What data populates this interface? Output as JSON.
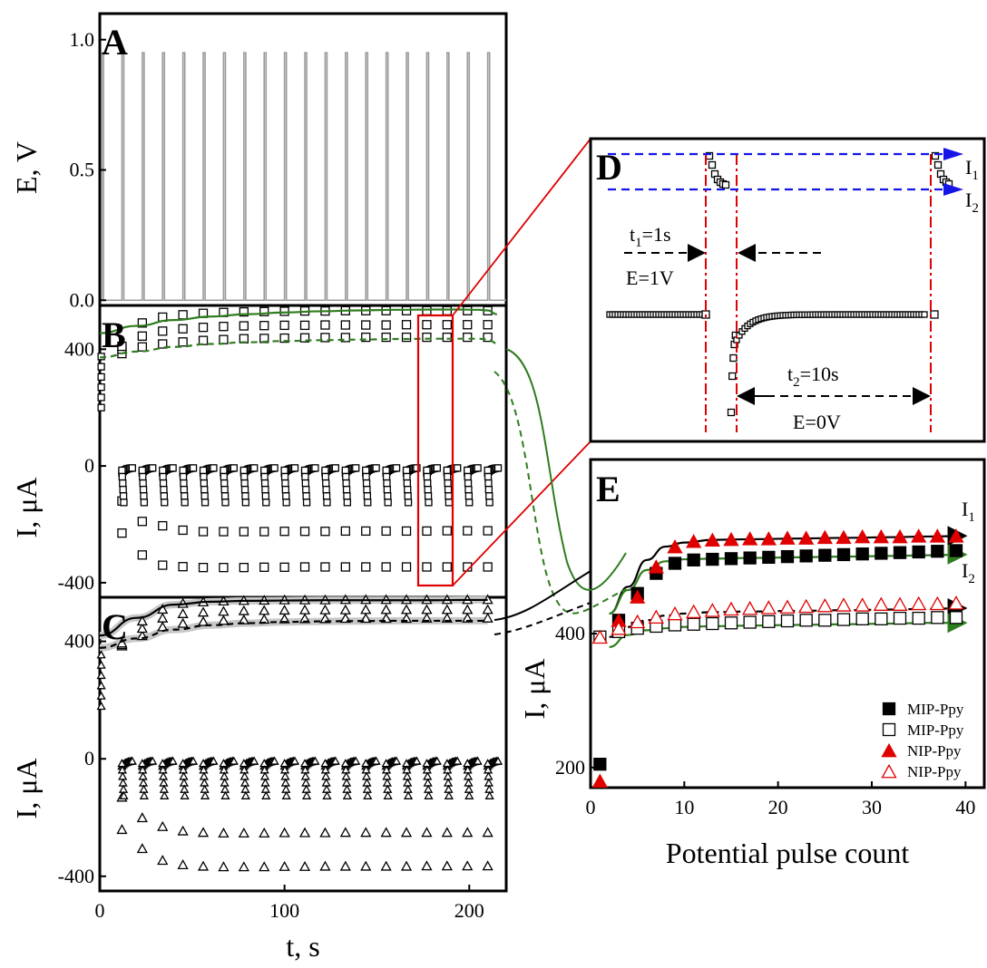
{
  "chart_data": [
    {
      "panel": "A",
      "type": "line",
      "ylabel": "E, V",
      "yticks": [
        "0.0",
        "0.5",
        "1.0"
      ],
      "ylim": [
        -0.02,
        1.1
      ],
      "xlim": [
        0,
        220
      ],
      "pulse_high_V": 0.95,
      "pulse_low_V": 0,
      "pulse_count": 20,
      "pulse_high_duration_s": 1,
      "pulse_low_duration_s": 10
    },
    {
      "panel": "B",
      "type": "scatter",
      "ylabel": "I, μA",
      "yticks": [
        "-400",
        "0",
        "400"
      ],
      "ylim": [
        -450,
        550
      ],
      "xlim": [
        0,
        220
      ],
      "marker": "open-square",
      "series": [
        {
          "x": [
            12,
            23,
            34,
            45,
            56,
            67,
            78,
            89,
            100,
            111,
            122,
            133,
            144,
            155,
            166,
            177,
            188,
            199,
            210
          ],
          "values": [
            385,
            408,
            418,
            425,
            430,
            433,
            436,
            437,
            438,
            439,
            440,
            440,
            441,
            441,
            441,
            441,
            441,
            441,
            441
          ]
        },
        {
          "x": [
            12,
            23,
            34,
            45,
            56,
            67,
            78,
            89,
            100,
            111,
            122,
            133,
            144,
            155,
            166,
            177,
            188,
            199,
            210
          ],
          "values": [
            400,
            445,
            462,
            470,
            475,
            478,
            480,
            481,
            482,
            482,
            483,
            483,
            483,
            483,
            484,
            484,
            484,
            484,
            484
          ]
        },
        {
          "x": [
            12,
            23,
            34,
            45,
            56,
            67,
            78,
            89,
            100,
            111,
            122,
            133,
            144,
            155,
            166,
            177,
            188,
            199,
            210
          ],
          "values": [
            410,
            490,
            510,
            518,
            523,
            526,
            528,
            529,
            530,
            531,
            531,
            532,
            532,
            532,
            532,
            532,
            532,
            532,
            532
          ]
        },
        {
          "x": [
            12,
            23,
            34,
            45,
            56,
            67,
            78,
            89,
            100,
            111,
            122,
            133,
            144,
            155,
            166,
            177,
            188,
            199,
            210
          ],
          "values": [
            -230,
            -305,
            -340,
            -345,
            -348,
            -348,
            -348,
            -347,
            -347,
            -346,
            -346,
            -346,
            -346,
            -346,
            -346,
            -346,
            -346,
            -346,
            -346
          ]
        },
        {
          "x": [
            12,
            23,
            34,
            45,
            56,
            67,
            78,
            89,
            100,
            111,
            122,
            133,
            144,
            155,
            166,
            177,
            188,
            199,
            210
          ],
          "values": [
            -120,
            -190,
            -205,
            -220,
            -225,
            -225,
            -225,
            -225,
            -224,
            -224,
            -224,
            -223,
            -223,
            -223,
            -223,
            -223,
            -222,
            -222,
            -222
          ]
        }
      ],
      "fit_curves": [
        {
          "style": "solid",
          "color": "#2e7d1e",
          "x": [
            0,
            20,
            40,
            60,
            80,
            100,
            120,
            140,
            160,
            180,
            195,
            205,
            210,
            215
          ],
          "values": [
            455,
            480,
            500,
            512,
            520,
            526,
            530,
            533,
            535,
            536,
            536,
            535,
            533,
            520
          ]
        },
        {
          "style": "dashed",
          "color": "#2e7d1e",
          "x": [
            0,
            20,
            40,
            60,
            80,
            100,
            120,
            140,
            160,
            180,
            195,
            205,
            210,
            215
          ],
          "values": [
            372,
            392,
            408,
            418,
            424,
            428,
            431,
            433,
            435,
            436,
            436,
            436,
            434,
            420
          ]
        }
      ]
    },
    {
      "panel": "C",
      "type": "scatter",
      "ylabel": "I, μA",
      "yticks": [
        "-400",
        "0",
        "400"
      ],
      "ylim": [
        -450,
        550
      ],
      "xlim": [
        0,
        220
      ],
      "xticks": [
        "0",
        "100",
        "200"
      ],
      "xlabel": "t, s",
      "marker": "open-triangle",
      "series": [
        {
          "x": [
            12,
            23,
            34,
            45,
            56,
            67,
            78,
            89,
            100,
            111,
            122,
            133,
            144,
            155,
            166,
            177,
            188,
            199,
            210
          ],
          "values": [
            385,
            420,
            450,
            462,
            468,
            472,
            474,
            476,
            477,
            478,
            478,
            479,
            479,
            479,
            479,
            480,
            480,
            480,
            480
          ]
        },
        {
          "x": [
            12,
            23,
            34,
            45,
            56,
            67,
            78,
            89,
            100,
            111,
            122,
            133,
            144,
            155,
            166,
            177,
            188,
            199,
            210
          ],
          "values": [
            390,
            445,
            480,
            495,
            500,
            503,
            505,
            506,
            507,
            508,
            508,
            508,
            509,
            509,
            509,
            509,
            509,
            509,
            509
          ]
        },
        {
          "x": [
            12,
            23,
            34,
            45,
            56,
            67,
            78,
            89,
            100,
            111,
            122,
            133,
            144,
            155,
            166,
            177,
            188,
            199,
            210
          ],
          "values": [
            395,
            470,
            510,
            530,
            535,
            538,
            540,
            541,
            542,
            542,
            542,
            543,
            543,
            543,
            543,
            543,
            543,
            543,
            543
          ]
        },
        {
          "x": [
            12,
            23,
            34,
            45,
            56,
            67,
            78,
            89,
            100,
            111,
            122,
            133,
            144,
            155,
            166,
            177,
            188,
            199,
            210
          ],
          "values": [
            -240,
            -305,
            -345,
            -360,
            -365,
            -367,
            -367,
            -367,
            -366,
            -366,
            -365,
            -365,
            -365,
            -365,
            -365,
            -364,
            -364,
            -364,
            -364
          ]
        },
        {
          "x": [
            12,
            23,
            34,
            45,
            56,
            67,
            78,
            89,
            100,
            111,
            122,
            133,
            144,
            155,
            166,
            177,
            188,
            199,
            210
          ],
          "values": [
            -130,
            -200,
            -230,
            -245,
            -250,
            -252,
            -252,
            -252,
            -251,
            -251,
            -251,
            -250,
            -250,
            -250,
            -250,
            -250,
            -250,
            -250,
            -250
          ]
        }
      ],
      "fit_curves": [
        {
          "style": "solid",
          "color": "#000000",
          "x": [
            0,
            20,
            40,
            60,
            80,
            100,
            120,
            140,
            160,
            180,
            200,
            210
          ],
          "values": [
            420,
            480,
            525,
            535,
            538,
            539,
            540,
            540,
            540,
            540,
            541,
            541
          ]
        },
        {
          "style": "dashed",
          "color": "#000000",
          "x": [
            0,
            20,
            40,
            60,
            80,
            100,
            120,
            140,
            160,
            180,
            200,
            210
          ],
          "values": [
            378,
            410,
            440,
            455,
            462,
            466,
            468,
            469,
            470,
            470,
            470,
            470
          ]
        }
      ]
    },
    {
      "panel": "D",
      "type": "scatter",
      "annotations": [
        "t₁=1s",
        "E=1V",
        "t₂=10s",
        "E=0V",
        "I₁",
        "I₂"
      ]
    },
    {
      "panel": "E",
      "type": "scatter",
      "xlabel": "Potential pulse count",
      "ylabel": "I, μA",
      "xticks": [
        "0",
        "10",
        "20",
        "30",
        "40"
      ],
      "yticks": [
        "200",
        "400"
      ],
      "xlim": [
        0,
        42
      ],
      "ylim": [
        170,
        660
      ],
      "legend_position": "bottom-right",
      "series": [
        {
          "name": "MIP-Ppy",
          "marker": "filled-square",
          "color": "#000000",
          "x": [
            1,
            3,
            5,
            7,
            9,
            11,
            13,
            15,
            17,
            19,
            21,
            23,
            25,
            27,
            29,
            31,
            33,
            35,
            37,
            39
          ],
          "values": [
            205,
            420,
            460,
            490,
            505,
            510,
            511,
            512,
            513,
            514,
            515,
            516,
            517,
            518,
            519,
            520,
            521,
            522,
            523,
            524
          ]
        },
        {
          "name": "MIP-Ppy",
          "marker": "open-square",
          "color": "#000000",
          "x": [
            1,
            3,
            5,
            7,
            9,
            11,
            13,
            15,
            17,
            19,
            21,
            23,
            25,
            27,
            29,
            31,
            33,
            35,
            37,
            39
          ],
          "values": [
            395,
            403,
            408,
            411,
            413,
            414,
            415,
            416,
            417,
            418,
            419,
            420,
            420,
            421,
            422,
            422,
            423,
            423,
            424,
            424
          ]
        },
        {
          "name": "NIP-Ppy",
          "marker": "filled-triangle",
          "color": "#e00000",
          "x": [
            1,
            3,
            5,
            7,
            9,
            11,
            13,
            15,
            17,
            19,
            21,
            23,
            25,
            27,
            29,
            31,
            33,
            35,
            37,
            39
          ],
          "values": [
            180,
            420,
            455,
            500,
            530,
            538,
            540,
            541,
            542,
            542,
            543,
            543,
            544,
            544,
            545,
            545,
            545,
            546,
            546,
            546
          ]
        },
        {
          "name": "NIP-Ppy",
          "marker": "open-triangle",
          "color": "#e00000",
          "x": [
            1,
            3,
            5,
            7,
            9,
            11,
            13,
            15,
            17,
            19,
            21,
            23,
            25,
            27,
            29,
            31,
            33,
            35,
            37,
            39
          ],
          "values": [
            395,
            408,
            418,
            425,
            430,
            433,
            435,
            437,
            438,
            439,
            440,
            441,
            442,
            443,
            443,
            444,
            444,
            445,
            445,
            446
          ]
        }
      ],
      "annotations": [
        "I₁",
        "I₂"
      ]
    }
  ],
  "labels": {
    "panel_a": "A",
    "panel_b": "B",
    "panel_c": "C",
    "panel_d": "D",
    "panel_e": "E",
    "ylabel_a": "E, V",
    "ylabel_b": "I, μA",
    "ylabel_c": "I, μA",
    "xlabel_left": "t, s",
    "xlabel_e": "Potential pulse count",
    "ylabel_e": "I, μA",
    "d_t1": "t",
    "d_t1_sub": "1",
    "d_t1_rest": "=1s",
    "d_e1": "E=1V",
    "d_t2": "t",
    "d_t2_sub": "2",
    "d_t2_rest": "=10s",
    "d_e0": "E=0V",
    "i": "I",
    "sub1": "1",
    "sub2": "2"
  },
  "colors": {
    "green": "#2e7d1e",
    "red": "#e00000",
    "blue": "#1515e8",
    "gray": "#9a9a9a"
  }
}
